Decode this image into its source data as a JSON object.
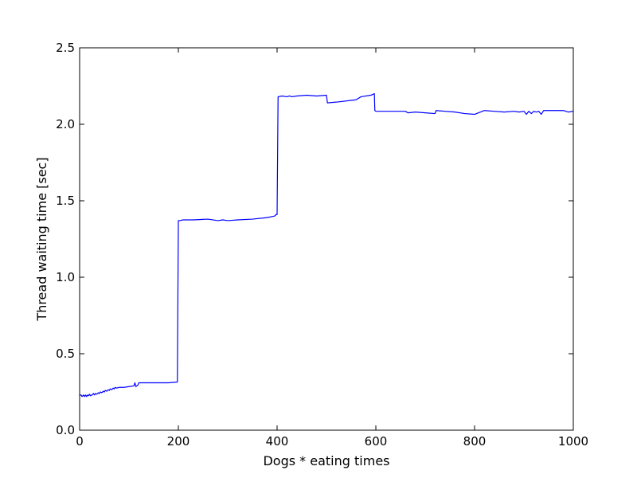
{
  "chart_data": {
    "type": "line",
    "title": "",
    "xlabel": "Dogs * eating times",
    "ylabel": "Thread waiting time [sec]",
    "xlim": [
      0,
      1000
    ],
    "ylim": [
      0,
      2.5
    ],
    "x_ticks": [
      0,
      200,
      400,
      600,
      800,
      1000
    ],
    "x_tick_labels": [
      "0",
      "200",
      "400",
      "600",
      "800",
      "1000"
    ],
    "y_ticks": [
      0.0,
      0.5,
      1.0,
      1.5,
      2.0,
      2.5
    ],
    "y_tick_labels": [
      "0.0",
      "0.5",
      "1.0",
      "1.5",
      "2.0",
      "2.5"
    ],
    "grid": false,
    "legend": "none",
    "series": [
      {
        "color": "#0000ff",
        "x": [
          0,
          3,
          5,
          8,
          10,
          12,
          14,
          16,
          18,
          20,
          22,
          25,
          28,
          30,
          32,
          35,
          38,
          40,
          42,
          45,
          48,
          50,
          52,
          55,
          58,
          60,
          62,
          65,
          68,
          70,
          72,
          75,
          80,
          90,
          100,
          110,
          112,
          114,
          116,
          118,
          120,
          150,
          180,
          198,
          200,
          202,
          210,
          230,
          260,
          280,
          290,
          300,
          320,
          350,
          380,
          395,
          398,
          400,
          402,
          410,
          420,
          425,
          430,
          440,
          460,
          480,
          500,
          502,
          520,
          560,
          570,
          590,
          597,
          598,
          600,
          620,
          640,
          660,
          665,
          680,
          700,
          720,
          722,
          740,
          760,
          780,
          800,
          820,
          840,
          860,
          880,
          890,
          900,
          905,
          910,
          915,
          920,
          925,
          930,
          935,
          940,
          960,
          980,
          990,
          1000
        ],
        "y": [
          0.23,
          0.23,
          0.22,
          0.23,
          0.22,
          0.23,
          0.22,
          0.23,
          0.225,
          0.235,
          0.225,
          0.23,
          0.24,
          0.23,
          0.24,
          0.235,
          0.245,
          0.24,
          0.25,
          0.245,
          0.255,
          0.25,
          0.26,
          0.255,
          0.265,
          0.26,
          0.27,
          0.265,
          0.275,
          0.27,
          0.28,
          0.275,
          0.28,
          0.28,
          0.285,
          0.29,
          0.31,
          0.285,
          0.29,
          0.295,
          0.31,
          0.31,
          0.31,
          0.315,
          1.37,
          1.37,
          1.375,
          1.375,
          1.38,
          1.37,
          1.375,
          1.37,
          1.375,
          1.38,
          1.39,
          1.4,
          1.41,
          1.41,
          2.18,
          2.185,
          2.18,
          2.185,
          2.18,
          2.185,
          2.19,
          2.185,
          2.19,
          2.14,
          2.145,
          2.16,
          2.18,
          2.19,
          2.2,
          2.09,
          2.085,
          2.085,
          2.085,
          2.085,
          2.075,
          2.08,
          2.075,
          2.07,
          2.09,
          2.085,
          2.08,
          2.07,
          2.065,
          2.09,
          2.085,
          2.08,
          2.085,
          2.08,
          2.085,
          2.065,
          2.085,
          2.07,
          2.085,
          2.08,
          2.085,
          2.065,
          2.09,
          2.09,
          2.09,
          2.08,
          2.085
        ]
      }
    ]
  }
}
